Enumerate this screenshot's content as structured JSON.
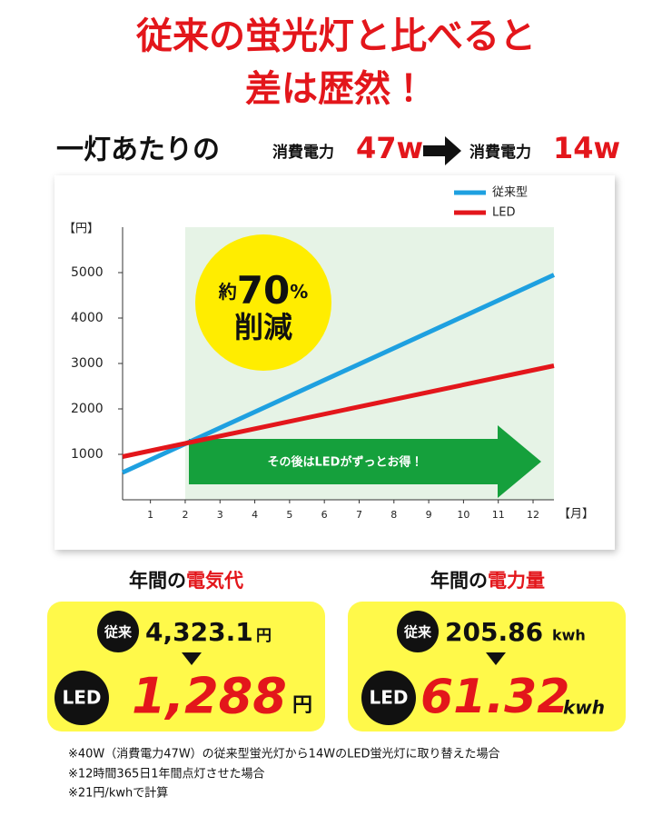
{
  "header": {
    "title_lines": [
      "従来の蛍光灯と比べると",
      "差は歴然！"
    ],
    "per_light": "一灯あたりの",
    "before_label": "消費電力",
    "before_value": "47w",
    "after_label": "消費電力",
    "after_value": "14w"
  },
  "chart_data": {
    "type": "line",
    "y_label": "【円】",
    "x_label": "【月】",
    "x": [
      0.2,
      12.6
    ],
    "series": [
      {
        "name": "従来型",
        "color": "#1ea0e0",
        "values": [
          600,
          4950
        ]
      },
      {
        "name": "LED",
        "color": "#e3161b",
        "values": [
          950,
          2950
        ]
      }
    ],
    "xlim": [
      0.2,
      12.6
    ],
    "xticks": [
      1,
      2,
      3,
      4,
      5,
      6,
      7,
      8,
      9,
      10,
      11,
      12
    ],
    "ylim": [
      0,
      6000
    ],
    "yticks": [
      1000,
      2000,
      3000,
      4000,
      5000
    ],
    "highlight_xlim": [
      2,
      12.6
    ],
    "highlight_color": "#e6f3e6",
    "badge": {
      "prefix": "約",
      "number": "70",
      "unit": "%",
      "text": "削減"
    },
    "arrow_text": "その後はLEDがずっとお得！"
  },
  "summary": [
    {
      "heading_prefix": "年間の",
      "heading_highlight": "電気代",
      "old_badge": "従来",
      "old_value": "4,323.1",
      "old_unit": "円",
      "led_badge": "LED",
      "led_value": "1,288",
      "led_unit": "円"
    },
    {
      "heading_prefix": "年間の",
      "heading_highlight": "電力量",
      "old_badge": "従来",
      "old_value": "205.86",
      "old_unit": "kwh",
      "led_badge": "LED",
      "led_value": "61.32",
      "led_unit": "kwh"
    }
  ],
  "notes": [
    "※40W（消費電力47W）の従来型蛍光灯から14WのLED蛍光灯に取り替えた場合",
    "※12時間365日1年間点灯させた場合",
    "※21円/kwhで計算"
  ]
}
